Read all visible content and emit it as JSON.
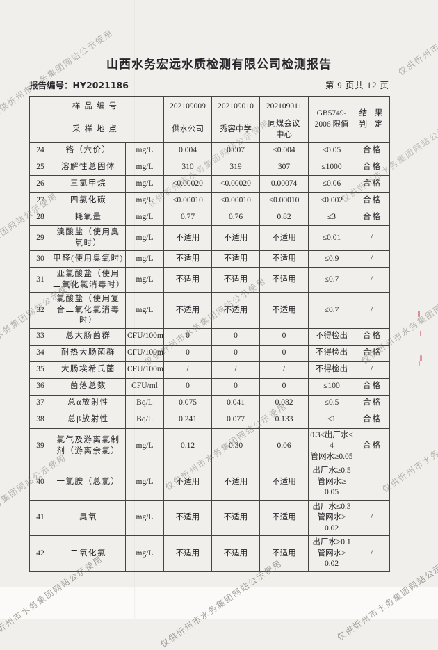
{
  "header": {
    "title": "山西水务宏远水质检测有限公司检测报告",
    "report_number": "报告编号：HY2021186",
    "page_indicator": "第 9 页共 12 页"
  },
  "watermark": {
    "text": "仅供忻州市水务集团网站公示使用"
  },
  "table": {
    "header": {
      "sample_no_label": "样品编号",
      "site_label": "采样地点",
      "sample_ids": [
        "202109009",
        "202109010",
        "202109011"
      ],
      "sites": [
        "供水公司",
        "秀容中学",
        "同煤会议\n中心"
      ],
      "limit_label": "GB5749-\n2006 限值",
      "result_label": "结 果\n判 定"
    },
    "rows": [
      {
        "no": "24",
        "name": "铬（六价）",
        "unit": "mg/L",
        "v1": "0.004",
        "v2": "0.007",
        "v3": "<0.004",
        "limit": "≤0.05",
        "result": "合格"
      },
      {
        "no": "25",
        "name": "溶解性总固体",
        "unit": "mg/L",
        "v1": "310",
        "v2": "319",
        "v3": "307",
        "limit": "≤1000",
        "result": "合格"
      },
      {
        "no": "26",
        "name": "三氯甲烷",
        "unit": "mg/L",
        "v1": "<0.00020",
        "v2": "<0.00020",
        "v3": "0.00074",
        "limit": "≤0.06",
        "result": "合格"
      },
      {
        "no": "27",
        "name": "四氯化碳",
        "unit": "mg/L",
        "v1": "<0.00010",
        "v2": "<0.00010",
        "v3": "<0.00010",
        "limit": "≤0.002",
        "result": "合格"
      },
      {
        "no": "28",
        "name": "耗氧量",
        "unit": "mg/L",
        "v1": "0.77",
        "v2": "0.76",
        "v3": "0.82",
        "limit": "≤3",
        "result": "合格"
      },
      {
        "no": "29",
        "name": "溴酸盐（使用臭氧时）",
        "unit": "mg/L",
        "v1": "不适用",
        "v2": "不适用",
        "v3": "不适用",
        "limit": "≤0.01",
        "result": "/"
      },
      {
        "no": "30",
        "name": "甲醛(使用臭氧时)",
        "unit": "mg/L",
        "v1": "不适用",
        "v2": "不适用",
        "v3": "不适用",
        "limit": "≤0.9",
        "result": "/"
      },
      {
        "no": "31",
        "name": "亚氯酸盐（使用二氧化氯消毒时）",
        "unit": "mg/L",
        "v1": "不适用",
        "v2": "不适用",
        "v3": "不适用",
        "limit": "≤0.7",
        "result": "/"
      },
      {
        "no": "32",
        "name": "氯酸盐（使用复合二氧化氯消毒时）",
        "unit": "mg/L",
        "v1": "不适用",
        "v2": "不适用",
        "v3": "不适用",
        "limit": "≤0.7",
        "result": "/"
      },
      {
        "no": "33",
        "name": "总大肠菌群",
        "unit": "CFU/100ml",
        "v1": "0",
        "v2": "0",
        "v3": "0",
        "limit": "不得检出",
        "result": "合格"
      },
      {
        "no": "34",
        "name": "耐热大肠菌群",
        "unit": "CFU/100ml",
        "v1": "0",
        "v2": "0",
        "v3": "0",
        "limit": "不得检出",
        "result": "合格"
      },
      {
        "no": "35",
        "name": "大肠埃希氏菌",
        "unit": "CFU/100ml",
        "v1": "/",
        "v2": "/",
        "v3": "/",
        "limit": "不得检出",
        "result": "/"
      },
      {
        "no": "36",
        "name": "菌落总数",
        "unit": "CFU/ml",
        "v1": "0",
        "v2": "0",
        "v3": "0",
        "limit": "≤100",
        "result": "合格"
      },
      {
        "no": "37",
        "name": "总α放射性",
        "unit": "Bq/L",
        "v1": "0.075",
        "v2": "0.041",
        "v3": "0.082",
        "limit": "≤0.5",
        "result": "合格"
      },
      {
        "no": "38",
        "name": "总β放射性",
        "unit": "Bq/L",
        "v1": "0.241",
        "v2": "0.077",
        "v3": "0.133",
        "limit": "≤1",
        "result": "合格"
      },
      {
        "no": "39",
        "name": "氯气及游离氯制剂（游离余氯）",
        "unit": "mg/L",
        "v1": "0.12",
        "v2": "0.30",
        "v3": "0.06",
        "limit": "0.3≤出厂水≤\n4\n管网水≥0.05",
        "result": "合格"
      },
      {
        "no": "40",
        "name": "一氯胺（总氯）",
        "unit": "mg/L",
        "v1": "不适用",
        "v2": "不适用",
        "v3": "不适用",
        "limit": "出厂水≥0.5\n管网水≥\n0.05",
        "result": ""
      },
      {
        "no": "41",
        "name": "臭氧",
        "unit": "mg/L",
        "v1": "不适用",
        "v2": "不适用",
        "v3": "不适用",
        "limit": "出厂水≤0.3\n管网水≥\n0.02",
        "result": "/"
      },
      {
        "no": "42",
        "name": "二氧化氯",
        "unit": "mg/L",
        "v1": "不适用",
        "v2": "不适用",
        "v3": "不适用",
        "limit": "出厂水≥0.1\n管网水≥\n0.02",
        "result": "/"
      }
    ]
  }
}
